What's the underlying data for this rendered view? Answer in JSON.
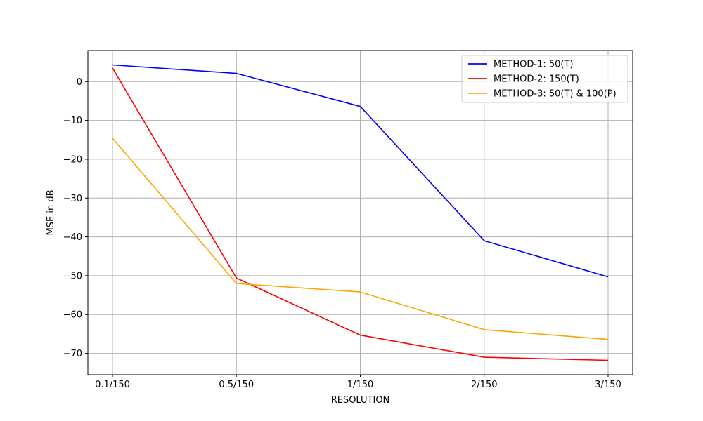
{
  "chart_data": {
    "type": "line",
    "categories": [
      "0.1/150",
      "0.5/150",
      "1/150",
      "2/150",
      "3/150"
    ],
    "xlabel": "RESOLUTION",
    "ylabel": "MSE in dB",
    "ylim": [
      -75.5,
      8
    ],
    "yticks": [
      0,
      -10,
      -20,
      -30,
      -40,
      -50,
      -60,
      -70
    ],
    "ytick_labels": [
      "0",
      "−10",
      "−20",
      "−30",
      "−40",
      "−50",
      "−60",
      "−70"
    ],
    "grid": true,
    "legend_position": "top-right",
    "series": [
      {
        "name": "METHOD-1: 50(T)",
        "color": "#0000ff",
        "values": [
          4.3,
          2.1,
          -6.4,
          -41.0,
          -50.3
        ]
      },
      {
        "name": "METHOD-2: 150(T)",
        "color": "#ff0000",
        "values": [
          3.5,
          -50.6,
          -65.3,
          -71.0,
          -71.8
        ]
      },
      {
        "name": "METHOD-3: 50(T) & 100(P)",
        "color": "#ffa500",
        "values": [
          -14.6,
          -52.0,
          -54.2,
          -63.9,
          -66.4
        ]
      }
    ]
  }
}
